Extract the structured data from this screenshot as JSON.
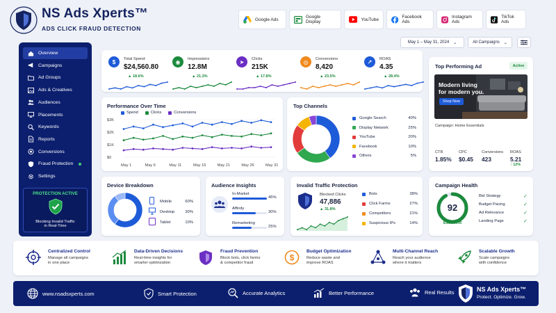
{
  "brand": {
    "name": "NS Ads Xperts™",
    "tagline": "ADS CLICK FRAUD DETECTION"
  },
  "platforms": [
    {
      "label": "Google Ads",
      "icon": "google-ads-icon"
    },
    {
      "label": "Google Display",
      "icon": "google-display-icon"
    },
    {
      "label": "YouTube",
      "icon": "youtube-icon"
    },
    {
      "label": "Facebook Ads",
      "icon": "facebook-icon"
    },
    {
      "label": "Instagram Ads",
      "icon": "instagram-icon"
    },
    {
      "label": "TikTok Ads",
      "icon": "tiktok-icon"
    }
  ],
  "filters": {
    "date_range": "May 1 – May 31, 2024",
    "campaign": "All Campaigns"
  },
  "sidebar": {
    "items": [
      {
        "label": "Overview",
        "icon": "home-icon",
        "active": true
      },
      {
        "label": "Campaigns",
        "icon": "megaphone-icon"
      },
      {
        "label": "Ad Groups",
        "icon": "folder-icon"
      },
      {
        "label": "Ads & Creatives",
        "icon": "image-icon"
      },
      {
        "label": "Audiences",
        "icon": "users-icon"
      },
      {
        "label": "Placements",
        "icon": "monitor-icon"
      },
      {
        "label": "Keywords",
        "icon": "search-icon"
      },
      {
        "label": "Reports",
        "icon": "file-icon"
      },
      {
        "label": "Conversions",
        "icon": "target-icon"
      },
      {
        "label": "Fraud Protection",
        "icon": "shield-icon"
      },
      {
        "label": "Settings",
        "icon": "gear-icon"
      }
    ],
    "protection": {
      "title": "PROTECTION ACTIVE",
      "line1": "Blocking Invalid Traffic",
      "line2": "in Real-Time"
    }
  },
  "kpis": [
    {
      "label": "Total Spend",
      "value": "$24,560.80",
      "delta": "18.6%",
      "color": "#1e5bd8",
      "glyph": "$"
    },
    {
      "label": "Impressions",
      "value": "12.8M",
      "delta": "21.3%",
      "color": "#1c8a3d",
      "glyph": "◉"
    },
    {
      "label": "Clicks",
      "value": "215K",
      "delta": "17.8%",
      "color": "#6b2fc4",
      "glyph": "➤"
    },
    {
      "label": "Conversions",
      "value": "8,420",
      "delta": "23.5%",
      "color": "#f08a1c",
      "glyph": "◎"
    },
    {
      "label": "ROAS",
      "value": "4.35",
      "delta": "28.4%",
      "color": "#1e5bd8",
      "glyph": "↗"
    }
  ],
  "kpi_sparks": [
    [
      5,
      6,
      5,
      7,
      6,
      8,
      7,
      9,
      8,
      10,
      11
    ],
    [
      4,
      5,
      4,
      6,
      5,
      6,
      7,
      6,
      8,
      7,
      9
    ],
    [
      4,
      4,
      5,
      5,
      6,
      5,
      7,
      6,
      7,
      8,
      9
    ],
    [
      5,
      4,
      6,
      5,
      6,
      7,
      6,
      7,
      8,
      7,
      9
    ],
    [
      4,
      5,
      6,
      5,
      7,
      6,
      7,
      8,
      7,
      9,
      10
    ]
  ],
  "top_ad": {
    "title": "Top Performing Ad",
    "badge": "Active",
    "headline1": "Modern living",
    "headline2": "for modern you.",
    "cta": "Shop Now",
    "campaign": "Campaign: Home Essentials",
    "metrics": [
      {
        "label": "CTR",
        "value": "1.85%"
      },
      {
        "label": "CPC",
        "value": "$0.45"
      },
      {
        "label": "Conversions",
        "value": "423"
      },
      {
        "label": "ROAS",
        "value": "5.21",
        "delta": "↑ 12%"
      }
    ]
  },
  "performance": {
    "title": "Performance Over Time",
    "legend": [
      "Spend",
      "Clicks",
      "Conversions"
    ],
    "colors": [
      "#1e5bd8",
      "#1c8a3d",
      "#6b2fc4"
    ],
    "yticks": [
      "$3K",
      "$2K",
      "$1K",
      "$0"
    ],
    "xticks": [
      "May 1",
      "May 6",
      "May 11",
      "May 16",
      "May 21",
      "May 26",
      "May 31"
    ]
  },
  "chart_data": [
    {
      "type": "line",
      "title": "Performance Over Time",
      "x": [
        "May 1",
        "May 3",
        "May 5",
        "May 7",
        "May 9",
        "May 11",
        "May 13",
        "May 15",
        "May 17",
        "May 19",
        "May 21",
        "May 23",
        "May 25",
        "May 27",
        "May 29",
        "May 31"
      ],
      "ylim": [
        0,
        3000
      ],
      "series": [
        {
          "name": "Spend",
          "values": [
            2250,
            2450,
            2300,
            2600,
            2400,
            2550,
            2700,
            2450,
            2750,
            2600,
            2800,
            2650,
            2900,
            2750,
            2950,
            2800
          ]
        },
        {
          "name": "Clicks",
          "values": [
            1350,
            1550,
            1400,
            1500,
            1700,
            1450,
            1650,
            1550,
            1750,
            1600,
            1800,
            1700,
            1650,
            1850,
            1750,
            1900
          ]
        },
        {
          "name": "Conversions",
          "values": [
            550,
            650,
            600,
            700,
            650,
            600,
            750,
            700,
            650,
            800,
            700,
            750,
            700,
            850,
            750,
            800
          ]
        }
      ]
    },
    {
      "type": "pie",
      "title": "Top Channels",
      "categories": [
        "Google Search",
        "Display Network",
        "YouTube",
        "Facebook",
        "Others"
      ],
      "values": [
        40,
        25,
        20,
        10,
        5
      ],
      "colors": [
        "#1e5bd8",
        "#2fa84f",
        "#e23b3b",
        "#f4b400",
        "#8a46d6"
      ]
    },
    {
      "type": "pie",
      "title": "Device Breakdown",
      "categories": [
        "Mobile",
        "Desktop",
        "Tablet"
      ],
      "values": [
        60,
        30,
        10
      ],
      "colors": [
        "#1e5bd8",
        "#5b8ef0",
        "#9bb9f5"
      ]
    },
    {
      "type": "bar",
      "title": "Audience Insights",
      "categories": [
        "In-Market",
        "Affinity",
        "Remarketing"
      ],
      "values": [
        45,
        30,
        25
      ]
    },
    {
      "type": "pie",
      "title": "Invalid Traffic Protection",
      "categories": [
        "Bots",
        "Click Farms",
        "Competitors",
        "Suspicious IPs"
      ],
      "values": [
        38,
        27,
        21,
        14
      ],
      "colors": [
        "#1e5bd8",
        "#e23b3b",
        "#f08a1c",
        "#f4b400"
      ]
    }
  ],
  "channels": {
    "title": "Top Channels",
    "items": [
      {
        "label": "Google Search",
        "pct": "40%",
        "color": "#1e5bd8"
      },
      {
        "label": "Display Network",
        "pct": "25%",
        "color": "#2fa84f"
      },
      {
        "label": "YouTube",
        "pct": "20%",
        "color": "#e23b3b"
      },
      {
        "label": "Facebook",
        "pct": "10%",
        "color": "#f4b400"
      },
      {
        "label": "Others",
        "pct": "5%",
        "color": "#8a46d6"
      }
    ]
  },
  "devices": {
    "title": "Device Breakdown",
    "items": [
      {
        "label": "Mobile",
        "pct": "60%",
        "icon": "phone-icon"
      },
      {
        "label": "Desktop",
        "pct": "30%",
        "icon": "desktop-icon"
      },
      {
        "label": "Tablet",
        "pct": "10%",
        "icon": "tablet-icon"
      }
    ]
  },
  "audience": {
    "title": "Audience Insights",
    "items": [
      {
        "label": "In-Market",
        "pct": "45%"
      },
      {
        "label": "Affinity",
        "pct": "30%"
      },
      {
        "label": "Remarketing",
        "pct": "25%"
      }
    ]
  },
  "invalid": {
    "title": "Invalid Traffic Protection",
    "blocked_label": "Blocked Clicks",
    "blocked_value": "47,886",
    "blocked_delta": "31.8%",
    "spark": [
      2,
      3,
      2,
      4,
      3,
      5,
      4,
      6,
      5,
      7,
      8,
      9
    ],
    "items": [
      {
        "label": "Bots",
        "pct": "38%",
        "color": "#1e5bd8"
      },
      {
        "label": "Click Farms",
        "pct": "27%",
        "color": "#e23b3b"
      },
      {
        "label": "Competitors",
        "pct": "21%",
        "color": "#f08a1c"
      },
      {
        "label": "Suspicious IPs",
        "pct": "14%",
        "color": "#f4b400"
      }
    ]
  },
  "health": {
    "title": "Campaign Health",
    "score": "92",
    "score_value": 92,
    "status": "Excellent",
    "items": [
      "Bid Strategy",
      "Budget Pacing",
      "Ad Relevance",
      "Landing Page"
    ]
  },
  "features": [
    {
      "title": "Centralized Control",
      "d1": "Manage all campaigns",
      "d2": "in one place",
      "icon": "crosshair-icon",
      "color": "#1b2d8c"
    },
    {
      "title": "Data-Driven Decisions",
      "d1": "Real-time insights for",
      "d2": "smarter optimization",
      "icon": "bar-chart-icon",
      "color": "#1c8a3d"
    },
    {
      "title": "Fraud Prevention",
      "d1": "Block bots, click farms",
      "d2": "& competitor fraud",
      "icon": "shield-icon",
      "color": "#6b2fc4"
    },
    {
      "title": "Budget Optimization",
      "d1": "Reduce waste and",
      "d2": "improve ROAS",
      "icon": "dollar-icon",
      "color": "#f08a1c"
    },
    {
      "title": "Multi-Channel Reach",
      "d1": "Reach your audience",
      "d2": "where it matters",
      "icon": "network-icon",
      "color": "#1b2d8c"
    },
    {
      "title": "Scalable Growth",
      "d1": "Scale campaigns",
      "d2": "with confidence",
      "icon": "rocket-icon",
      "color": "#1c8a3d"
    }
  ],
  "footer": {
    "website": "www.nsadsxperts.com",
    "items": [
      "Smart Protection",
      "Accurate Analytics",
      "Better Performance",
      "Real Results"
    ],
    "brand": "NS Ads Xperts™",
    "slogan": "Protect. Optimize. Grow."
  }
}
